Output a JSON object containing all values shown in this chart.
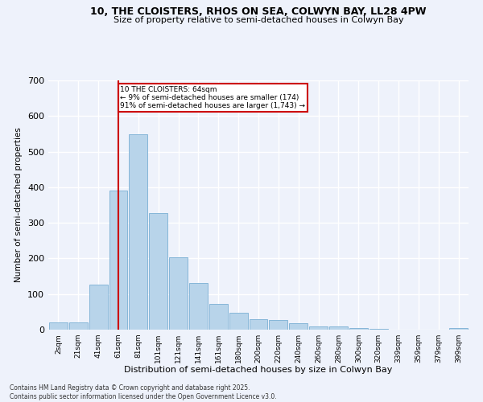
{
  "title1": "10, THE CLOISTERS, RHOS ON SEA, COLWYN BAY, LL28 4PW",
  "title2": "Size of property relative to semi-detached houses in Colwyn Bay",
  "xlabel": "Distribution of semi-detached houses by size in Colwyn Bay",
  "ylabel": "Number of semi-detached properties",
  "categories": [
    "2sqm",
    "21sqm",
    "41sqm",
    "61sqm",
    "81sqm",
    "101sqm",
    "121sqm",
    "141sqm",
    "161sqm",
    "180sqm",
    "200sqm",
    "220sqm",
    "240sqm",
    "260sqm",
    "280sqm",
    "300sqm",
    "320sqm",
    "339sqm",
    "359sqm",
    "379sqm",
    "399sqm"
  ],
  "values": [
    20,
    20,
    127,
    390,
    548,
    328,
    203,
    132,
    72,
    47,
    30,
    27,
    18,
    10,
    8,
    5,
    2,
    0,
    0,
    0,
    5
  ],
  "bar_color": "#b8d4ea",
  "bar_edge_color": "#7aafd4",
  "vline_x": 3,
  "vline_color": "#cc0000",
  "annotation_title": "10 THE CLOISTERS: 64sqm",
  "annotation_line1": "← 9% of semi-detached houses are smaller (174)",
  "annotation_line2": "91% of semi-detached houses are larger (1,743) →",
  "annotation_box_color": "#cc0000",
  "ylim": [
    0,
    700
  ],
  "yticks": [
    0,
    100,
    200,
    300,
    400,
    500,
    600,
    700
  ],
  "footer1": "Contains HM Land Registry data © Crown copyright and database right 2025.",
  "footer2": "Contains public sector information licensed under the Open Government Licence v3.0.",
  "background_color": "#eef2fb",
  "grid_color": "#ffffff"
}
